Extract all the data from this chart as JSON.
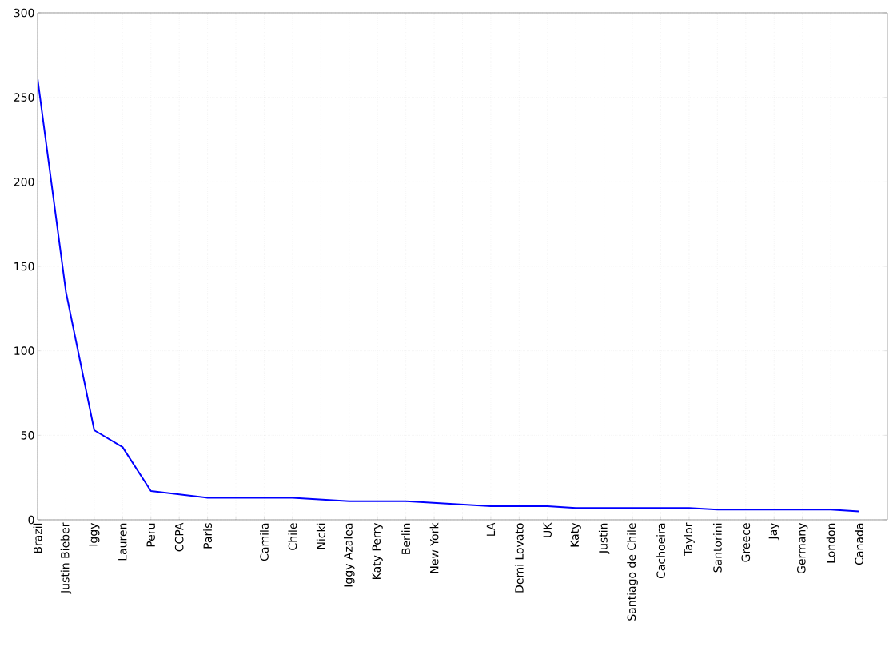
{
  "chart_data": {
    "type": "line",
    "categories": [
      "Brazil",
      "Justin Bieber",
      "Iggy",
      "Lauren",
      "Peru",
      "CCPA",
      "Paris",
      null,
      "Camila",
      "Chile",
      "Nicki",
      "Iggy Azalea",
      "Katy Perry",
      "Berlin",
      "New York",
      null,
      "LA",
      "Demi Lovato",
      "UK",
      "Katy",
      "Justin",
      "Santiago de Chile",
      "Cachoeira",
      "Taylor",
      "Santorini",
      "Greece",
      "Jay",
      "Germany",
      "London",
      "Canada"
    ],
    "series": [
      {
        "color": "#0000ff",
        "values": [
          261,
          135,
          53,
          43,
          17,
          15,
          13,
          13,
          13,
          13,
          12,
          11,
          11,
          11,
          10,
          9,
          8,
          8,
          8,
          7,
          7,
          7,
          7,
          7,
          6,
          6,
          6,
          6,
          6,
          5
        ]
      }
    ],
    "ylim": [
      0,
      300
    ],
    "yticks": [
      0,
      50,
      100,
      150,
      200,
      250,
      300
    ],
    "grid": true,
    "line_style": "solid"
  }
}
